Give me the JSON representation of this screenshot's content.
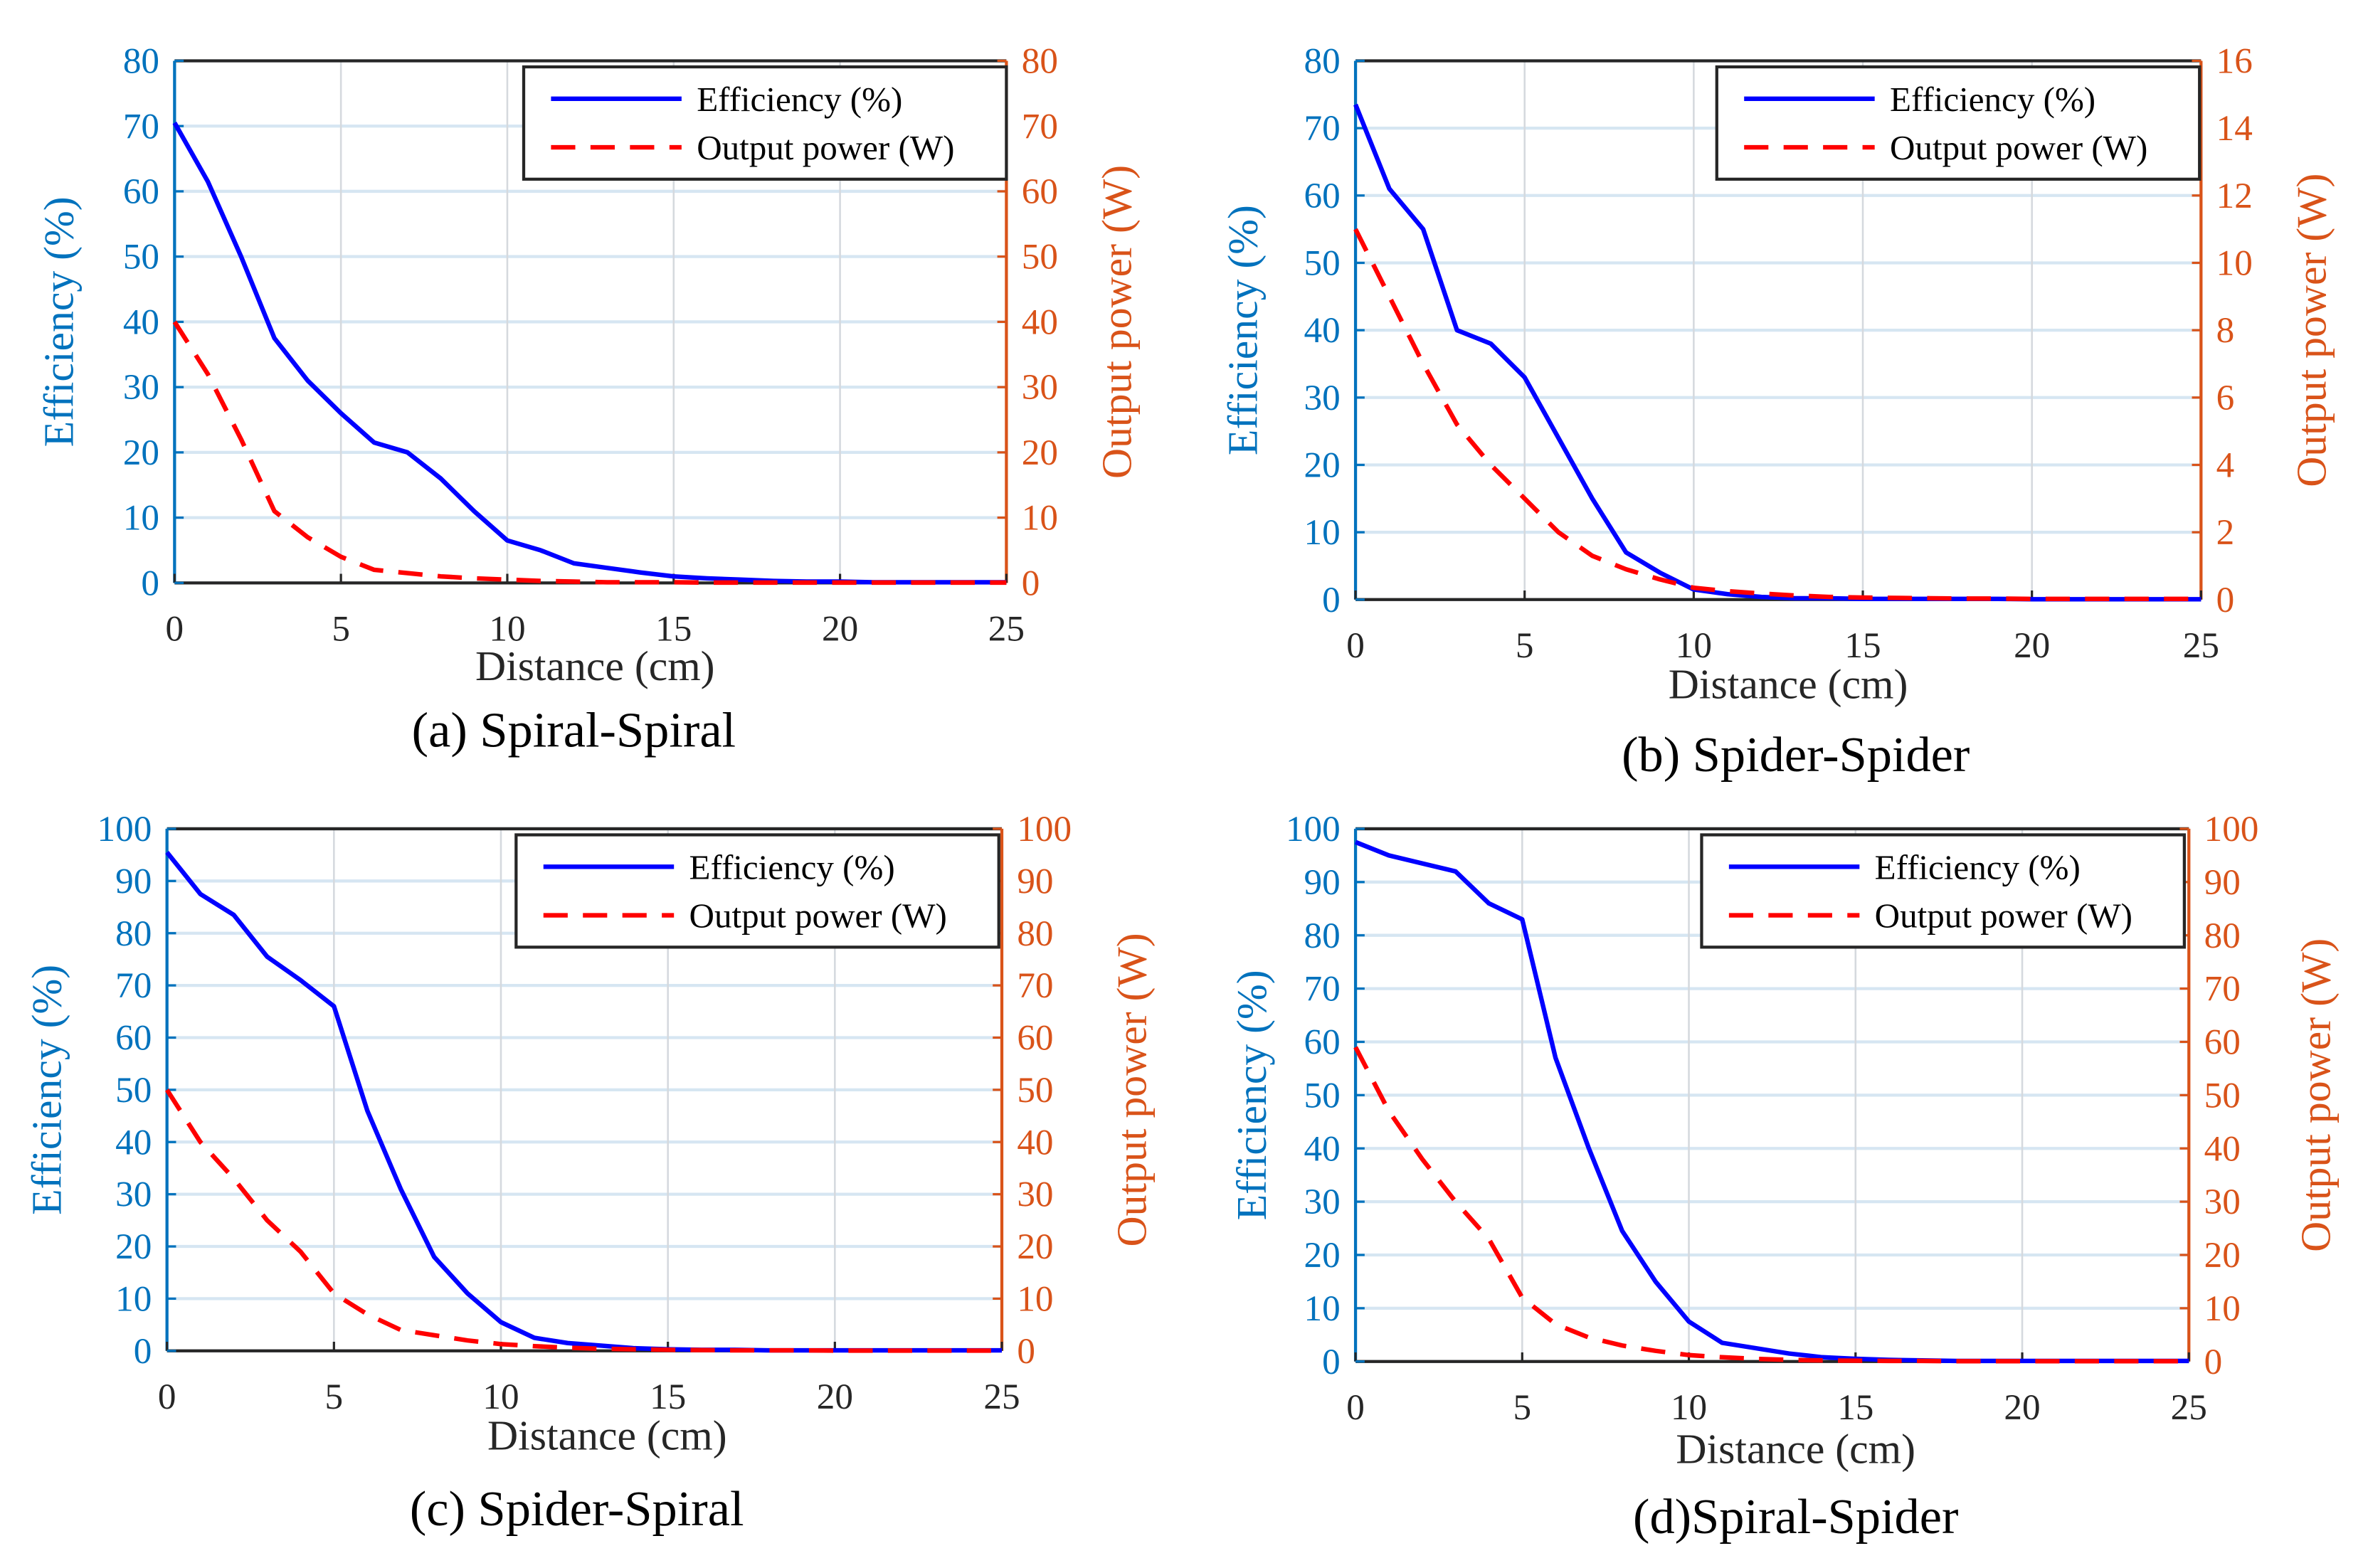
{
  "colors": {
    "efficiency": "#0000FF",
    "power": "#FF0000",
    "left_axis": "#0072BD",
    "right_axis": "#D95319",
    "grid": "#D6E6F2"
  },
  "chart_data": [
    {
      "type": "line",
      "caption": "(a) Spiral-Spiral",
      "xlabel": "Distance (cm)",
      "ylabel_left": "Efficiency (%)",
      "ylabel_right": "Output power (W)",
      "xlim": [
        0,
        25
      ],
      "xticks": [
        0,
        5,
        10,
        15,
        20,
        25
      ],
      "ylim_left": [
        0,
        80
      ],
      "yticks_left": [
        0,
        10,
        20,
        30,
        40,
        50,
        60,
        70,
        80
      ],
      "ylim_right": [
        0,
        80
      ],
      "yticks_right": [
        0,
        10,
        20,
        30,
        40,
        50,
        60,
        70,
        80
      ],
      "legend": {
        "placement": "top-right",
        "entries": [
          "Efficiency (%)",
          "Output power (W)"
        ]
      },
      "grid": true,
      "x": [
        0,
        1,
        2,
        3,
        4,
        5,
        6,
        7,
        8,
        9,
        10,
        11,
        12,
        13,
        14,
        15,
        16,
        17,
        18,
        19,
        20,
        21,
        22,
        23,
        24,
        25
      ],
      "series": [
        {
          "name": "Efficiency (%)",
          "axis": "left",
          "values": [
            70.5,
            61.5,
            50,
            37.5,
            31,
            26,
            21.5,
            20,
            16,
            11,
            6.5,
            5,
            3,
            2.3,
            1.6,
            1,
            0.7,
            0.5,
            0.3,
            0.2,
            0.2,
            0.1,
            0.1,
            0.1,
            0.1,
            0.1
          ]
        },
        {
          "name": "Output power (W)",
          "axis": "right",
          "values": [
            40,
            32,
            22,
            11,
            7,
            4,
            2,
            1.5,
            1,
            0.7,
            0.5,
            0.3,
            0.2,
            0.1,
            0.1,
            0.1,
            0.05,
            0.05,
            0.05,
            0.05,
            0.05,
            0.05,
            0.05,
            0.05,
            0.05,
            0.05
          ]
        }
      ]
    },
    {
      "type": "line",
      "caption": "(b) Spider-Spider",
      "xlabel": "Distance (cm)",
      "ylabel_left": "Efficiency (%)",
      "ylabel_right": "Output power (W)",
      "xlim": [
        0,
        25
      ],
      "xticks": [
        0,
        5,
        10,
        15,
        20,
        25
      ],
      "ylim_left": [
        0,
        80
      ],
      "yticks_left": [
        0,
        10,
        20,
        30,
        40,
        50,
        60,
        70,
        80
      ],
      "ylim_right": [
        0,
        16
      ],
      "yticks_right": [
        0,
        2,
        4,
        6,
        8,
        10,
        12,
        14,
        16
      ],
      "legend": {
        "placement": "top-right",
        "entries": [
          "Efficiency (%)",
          "Output power (W)"
        ]
      },
      "grid": true,
      "x": [
        0,
        1,
        2,
        3,
        4,
        5,
        6,
        7,
        8,
        9,
        10,
        11,
        12,
        13,
        14,
        15,
        16,
        17,
        18,
        19,
        20,
        21,
        22,
        23,
        24,
        25
      ],
      "series": [
        {
          "name": "Efficiency (%)",
          "axis": "left",
          "values": [
            73.5,
            61,
            55,
            40,
            38,
            33,
            24,
            15,
            7,
            4,
            1.5,
            0.8,
            0.4,
            0.2,
            0.2,
            0.1,
            0.1,
            0.1,
            0.1,
            0.1,
            0.05,
            0.05,
            0.05,
            0.05,
            0.05,
            0.05
          ]
        },
        {
          "name": "Output power (W)",
          "axis": "right",
          "values": [
            11,
            9,
            7,
            5.2,
            4,
            3,
            2,
            1.3,
            0.9,
            0.6,
            0.35,
            0.25,
            0.18,
            0.12,
            0.08,
            0.06,
            0.05,
            0.04,
            0.03,
            0.03,
            0.02,
            0.02,
            0.02,
            0.02,
            0.02,
            0.02
          ]
        }
      ]
    },
    {
      "type": "line",
      "caption": "(c) Spider-Spiral",
      "xlabel": "Distance (cm)",
      "ylabel_left": "Efficiency (%)",
      "ylabel_right": "Output power (W)",
      "xlim": [
        0,
        25
      ],
      "xticks": [
        0,
        5,
        10,
        15,
        20,
        25
      ],
      "ylim_left": [
        0,
        100
      ],
      "yticks_left": [
        0,
        10,
        20,
        30,
        40,
        50,
        60,
        70,
        80,
        90,
        100
      ],
      "ylim_right": [
        0,
        100
      ],
      "yticks_right": [
        0,
        10,
        20,
        30,
        40,
        50,
        60,
        70,
        80,
        90,
        100
      ],
      "legend": {
        "placement": "top-right",
        "entries": [
          "Efficiency (%)",
          "Output power (W)"
        ]
      },
      "grid": true,
      "x": [
        0,
        1,
        2,
        3,
        4,
        5,
        6,
        7,
        8,
        9,
        10,
        11,
        12,
        13,
        14,
        15,
        16,
        17,
        18,
        19,
        20,
        21,
        22,
        23,
        24,
        25
      ],
      "series": [
        {
          "name": "Efficiency (%)",
          "axis": "left",
          "values": [
            95.5,
            87.5,
            83.5,
            75.5,
            71,
            66,
            46,
            31,
            18,
            11,
            5.5,
            2.5,
            1.5,
            1,
            0.5,
            0.3,
            0.2,
            0.2,
            0.1,
            0.1,
            0.1,
            0.1,
            0.1,
            0.1,
            0.1,
            0.1
          ]
        },
        {
          "name": "Output power (W)",
          "axis": "right",
          "values": [
            50,
            40,
            33,
            25,
            19,
            11,
            7,
            4,
            3,
            2,
            1.3,
            0.9,
            0.6,
            0.4,
            0.3,
            0.2,
            0.15,
            0.1,
            0.1,
            0.1,
            0.05,
            0.05,
            0.05,
            0.05,
            0.05,
            0.05
          ]
        }
      ]
    },
    {
      "type": "line",
      "caption": "(d)Spiral-Spider",
      "xlabel": "Distance (cm)",
      "ylabel_left": "Efficiency (%)",
      "ylabel_right": "Output power (W)",
      "xlim": [
        0,
        25
      ],
      "xticks": [
        0,
        5,
        10,
        15,
        20,
        25
      ],
      "ylim_left": [
        0,
        100
      ],
      "yticks_left": [
        0,
        10,
        20,
        30,
        40,
        50,
        60,
        70,
        80,
        90,
        100
      ],
      "ylim_right": [
        0,
        100
      ],
      "yticks_right": [
        0,
        10,
        20,
        30,
        40,
        50,
        60,
        70,
        80,
        90,
        100
      ],
      "legend": {
        "placement": "top-right",
        "entries": [
          "Efficiency (%)",
          "Output power (W)"
        ]
      },
      "grid": true,
      "x": [
        0,
        1,
        2,
        3,
        4,
        5,
        6,
        7,
        8,
        9,
        10,
        11,
        12,
        13,
        14,
        15,
        16,
        17,
        18,
        19,
        20,
        21,
        22,
        23,
        24,
        25
      ],
      "series": [
        {
          "name": "Efficiency (%)",
          "axis": "left",
          "values": [
            97.5,
            95,
            93.5,
            92,
            86,
            83,
            57,
            40,
            24.5,
            15,
            7.5,
            3.5,
            2.5,
            1.5,
            0.8,
            0.5,
            0.3,
            0.2,
            0.1,
            0.1,
            0.1,
            0.1,
            0.1,
            0.1,
            0.1,
            0.1
          ]
        },
        {
          "name": "Output power (W)",
          "axis": "right",
          "values": [
            59,
            47,
            38,
            30,
            23,
            12,
            7,
            4.5,
            3,
            2,
            1.2,
            0.8,
            0.5,
            0.3,
            0.2,
            0.15,
            0.1,
            0.1,
            0.05,
            0.05,
            0.05,
            0.05,
            0.05,
            0.05,
            0.05,
            0.05
          ]
        }
      ]
    }
  ]
}
